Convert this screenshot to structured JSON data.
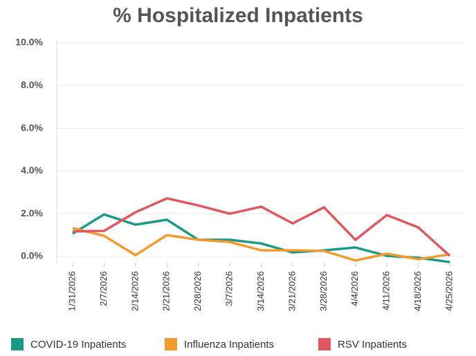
{
  "chart_data": {
    "type": "line",
    "title": "% Hospitalized Inpatients",
    "categories": [
      "1/31/2026",
      "2/7/2026",
      "2/14/2026",
      "2/21/2026",
      "2/28/2026",
      "3/7/2026",
      "3/14/2026",
      "3/21/2026",
      "3/28/2026",
      "4/4/2026",
      "4/11/2026",
      "4/18/2026",
      "4/25/2026"
    ],
    "series": [
      {
        "name": "COVID-19 Inpatients",
        "color": "#1a9a86",
        "values": [
          1.07,
          1.97,
          1.49,
          1.72,
          0.78,
          0.78,
          0.61,
          0.19,
          0.29,
          0.42,
          0.03,
          -0.06,
          -0.26
        ]
      },
      {
        "name": "Influenza Inpatients",
        "color": "#f39a2f",
        "values": [
          1.33,
          0.97,
          0.06,
          1.0,
          0.78,
          0.68,
          0.29,
          0.29,
          0.26,
          -0.19,
          0.13,
          -0.13,
          0.1
        ]
      },
      {
        "name": "RSV Inpatients",
        "color": "#e0575f",
        "values": [
          1.17,
          1.2,
          2.07,
          2.72,
          2.39,
          2.0,
          2.33,
          1.55,
          2.3,
          0.78,
          1.94,
          1.36,
          0.03
        ]
      }
    ],
    "ylim": [
      -0.3,
      10
    ],
    "yticks": [
      {
        "value": 0,
        "label": "0.0%"
      },
      {
        "value": 2,
        "label": "2.0%"
      },
      {
        "value": 4,
        "label": "4.0%"
      },
      {
        "value": 6,
        "label": "6.0%"
      },
      {
        "value": 8,
        "label": "8.0%"
      },
      {
        "value": 10,
        "label": "10.0%"
      }
    ],
    "grid": true
  }
}
